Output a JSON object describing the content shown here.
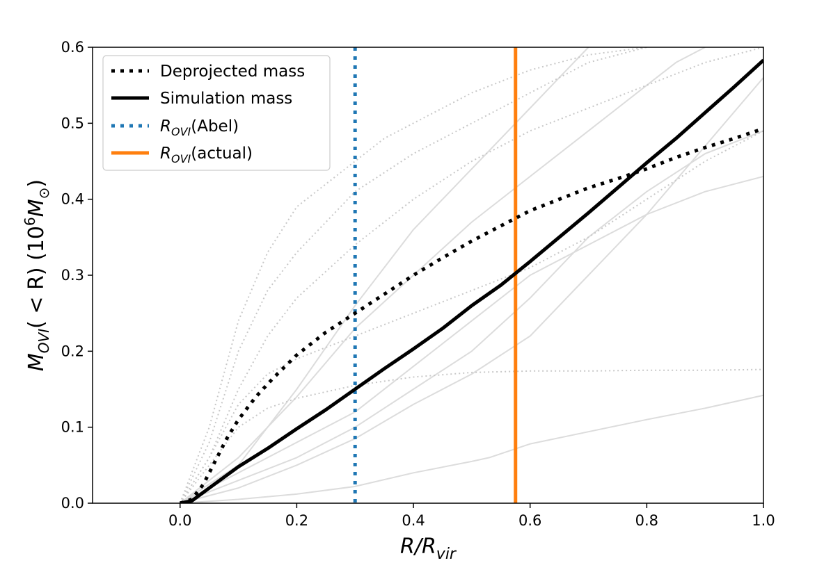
{
  "chart_data": {
    "type": "line",
    "title": "",
    "xlabel": {
      "main": "R/R",
      "sub": "vir"
    },
    "ylabel": {
      "main": "M",
      "sub": "OVI",
      "mid": "( < R) (10",
      "sup": "6",
      "tail": "M",
      "sub2": "⊙",
      "end": ")"
    },
    "xlim": [
      -0.15,
      1.0
    ],
    "ylim": [
      0.0,
      0.6
    ],
    "xticks": [
      0.0,
      0.2,
      0.4,
      0.6,
      0.8,
      1.0
    ],
    "xtick_labels": [
      "0.0",
      "0.2",
      "0.4",
      "0.6",
      "0.8",
      "1.0"
    ],
    "yticks": [
      0.0,
      0.1,
      0.2,
      0.3,
      0.4,
      0.5,
      0.6
    ],
    "ytick_labels": [
      "0.0",
      "0.1",
      "0.2",
      "0.3",
      "0.4",
      "0.5",
      "0.6"
    ],
    "legend": {
      "placement": "top-left",
      "entries": [
        {
          "label": "Deprojected mass",
          "style": "dotted",
          "color": "#000000"
        },
        {
          "label": "Simulation mass",
          "style": "solid",
          "color": "#000000"
        },
        {
          "label": "R",
          "sub": "OVI",
          "suffix": "(Abel)",
          "style": "dotted",
          "color": "#1f77b4"
        },
        {
          "label": "R",
          "sub": "OVI",
          "suffix": "(actual)",
          "style": "solid",
          "color": "#ff7f0e"
        }
      ]
    },
    "series": [
      {
        "name": "Deprojected mass",
        "style": "dotted",
        "color": "#000000",
        "x": [
          0.0,
          0.02,
          0.04,
          0.06,
          0.08,
          0.1,
          0.13,
          0.16,
          0.2,
          0.25,
          0.3,
          0.35,
          0.4,
          0.45,
          0.5,
          0.55,
          0.6,
          0.65,
          0.7,
          0.75,
          0.8,
          0.85,
          0.9,
          0.95,
          1.0
        ],
        "y": [
          0.0,
          0.005,
          0.025,
          0.055,
          0.085,
          0.11,
          0.14,
          0.165,
          0.195,
          0.225,
          0.25,
          0.275,
          0.3,
          0.323,
          0.345,
          0.365,
          0.385,
          0.4,
          0.415,
          0.427,
          0.44,
          0.455,
          0.468,
          0.48,
          0.493
        ]
      },
      {
        "name": "Simulation mass",
        "style": "solid",
        "color": "#000000",
        "x": [
          0.0,
          0.02,
          0.05,
          0.1,
          0.15,
          0.2,
          0.25,
          0.3,
          0.35,
          0.4,
          0.45,
          0.5,
          0.55,
          0.6,
          0.65,
          0.7,
          0.75,
          0.8,
          0.85,
          0.9,
          0.95,
          1.0
        ],
        "y": [
          0.0,
          0.003,
          0.02,
          0.048,
          0.072,
          0.098,
          0.123,
          0.15,
          0.177,
          0.203,
          0.23,
          0.26,
          0.287,
          0.318,
          0.35,
          0.382,
          0.415,
          0.448,
          0.48,
          0.514,
          0.548,
          0.583
        ]
      },
      {
        "name": "Background simulated 1",
        "style": "solid",
        "color": "#dcdcdc",
        "x": [
          0.0,
          0.1,
          0.2,
          0.3,
          0.4,
          0.5,
          0.53,
          0.6,
          0.7,
          0.8,
          0.9,
          1.0
        ],
        "y": [
          0.0,
          0.005,
          0.012,
          0.022,
          0.04,
          0.055,
          0.06,
          0.078,
          0.094,
          0.11,
          0.125,
          0.142
        ]
      },
      {
        "name": "Background simulated 2",
        "style": "solid",
        "color": "#dcdcdc",
        "x": [
          0.0,
          0.1,
          0.2,
          0.3,
          0.4,
          0.5,
          0.6,
          0.7,
          0.8,
          0.9,
          1.0
        ],
        "y": [
          0.0,
          0.02,
          0.05,
          0.085,
          0.13,
          0.17,
          0.22,
          0.3,
          0.38,
          0.47,
          0.56
        ]
      },
      {
        "name": "Background simulated 3",
        "style": "solid",
        "color": "#dcdcdc",
        "x": [
          0.0,
          0.1,
          0.2,
          0.3,
          0.4,
          0.5,
          0.6,
          0.7,
          0.8,
          0.9,
          1.0
        ],
        "y": [
          0.0,
          0.03,
          0.06,
          0.1,
          0.15,
          0.2,
          0.27,
          0.35,
          0.41,
          0.46,
          0.49
        ]
      },
      {
        "name": "Background simulated 4",
        "style": "solid",
        "color": "#dcdcdc",
        "x": [
          0.0,
          0.1,
          0.2,
          0.3,
          0.4,
          0.5,
          0.6,
          0.7,
          0.8,
          0.9,
          1.0
        ],
        "y": [
          0.0,
          0.04,
          0.08,
          0.12,
          0.18,
          0.24,
          0.3,
          0.34,
          0.38,
          0.41,
          0.43
        ]
      },
      {
        "name": "Background simulated 5",
        "style": "solid",
        "color": "#dcdcdc",
        "x": [
          0.0,
          0.1,
          0.2,
          0.3,
          0.4,
          0.5,
          0.6,
          0.65,
          0.7
        ],
        "y": [
          0.0,
          0.05,
          0.15,
          0.26,
          0.36,
          0.44,
          0.52,
          0.56,
          0.6
        ]
      },
      {
        "name": "Background simulated 6",
        "style": "solid",
        "color": "#dcdcdc",
        "x": [
          0.0,
          0.1,
          0.2,
          0.3,
          0.4,
          0.5,
          0.6,
          0.7,
          0.8,
          0.85,
          0.9
        ],
        "y": [
          0.0,
          0.06,
          0.14,
          0.23,
          0.3,
          0.37,
          0.43,
          0.49,
          0.55,
          0.58,
          0.6
        ]
      },
      {
        "name": "Background deprojected 1",
        "style": "dotted",
        "color": "#c8c8c8",
        "x": [
          0.0,
          0.05,
          0.1,
          0.15,
          0.2,
          0.3,
          0.4,
          0.5,
          0.6,
          0.7,
          0.8,
          0.9,
          1.0
        ],
        "y": [
          0.0,
          0.05,
          0.1,
          0.125,
          0.138,
          0.155,
          0.166,
          0.172,
          0.174,
          0.174,
          0.175,
          0.175,
          0.176
        ]
      },
      {
        "name": "Background deprojected 2",
        "style": "dotted",
        "color": "#c8c8c8",
        "x": [
          0.0,
          0.05,
          0.1,
          0.15,
          0.2,
          0.3,
          0.4,
          0.5,
          0.6,
          0.7,
          0.8,
          0.9,
          1.0
        ],
        "y": [
          0.0,
          0.06,
          0.13,
          0.17,
          0.19,
          0.22,
          0.25,
          0.28,
          0.31,
          0.35,
          0.4,
          0.45,
          0.49
        ]
      },
      {
        "name": "Background deprojected 3",
        "style": "dotted",
        "color": "#c8c8c8",
        "x": [
          0.0,
          0.05,
          0.1,
          0.15,
          0.2,
          0.25,
          0.3,
          0.4,
          0.5,
          0.6,
          0.7,
          0.8
        ],
        "y": [
          0.0,
          0.08,
          0.2,
          0.28,
          0.33,
          0.37,
          0.41,
          0.46,
          0.5,
          0.54,
          0.58,
          0.6
        ]
      },
      {
        "name": "Background deprojected 4",
        "style": "dotted",
        "color": "#c8c8c8",
        "x": [
          0.0,
          0.05,
          0.1,
          0.15,
          0.2,
          0.3,
          0.4,
          0.5,
          0.6,
          0.7,
          0.8,
          0.9,
          1.0
        ],
        "y": [
          0.0,
          0.06,
          0.15,
          0.22,
          0.27,
          0.34,
          0.4,
          0.45,
          0.49,
          0.52,
          0.55,
          0.58,
          0.6
        ]
      },
      {
        "name": "Background deprojected 5",
        "style": "dotted",
        "color": "#c8c8c8",
        "x": [
          0.0,
          0.05,
          0.1,
          0.15,
          0.2,
          0.25,
          0.3,
          0.35,
          0.4,
          0.45,
          0.5,
          0.6,
          0.7,
          0.8
        ],
        "y": [
          0.0,
          0.1,
          0.24,
          0.33,
          0.39,
          0.42,
          0.45,
          0.48,
          0.5,
          0.52,
          0.54,
          0.57,
          0.59,
          0.6
        ]
      }
    ],
    "vlines": [
      {
        "name": "R_OVI (Abel)",
        "x": 0.3,
        "style": "dotted",
        "color": "#1f77b4"
      },
      {
        "name": "R_OVI (actual)",
        "x": 0.575,
        "style": "solid",
        "color": "#ff7f0e"
      }
    ]
  }
}
